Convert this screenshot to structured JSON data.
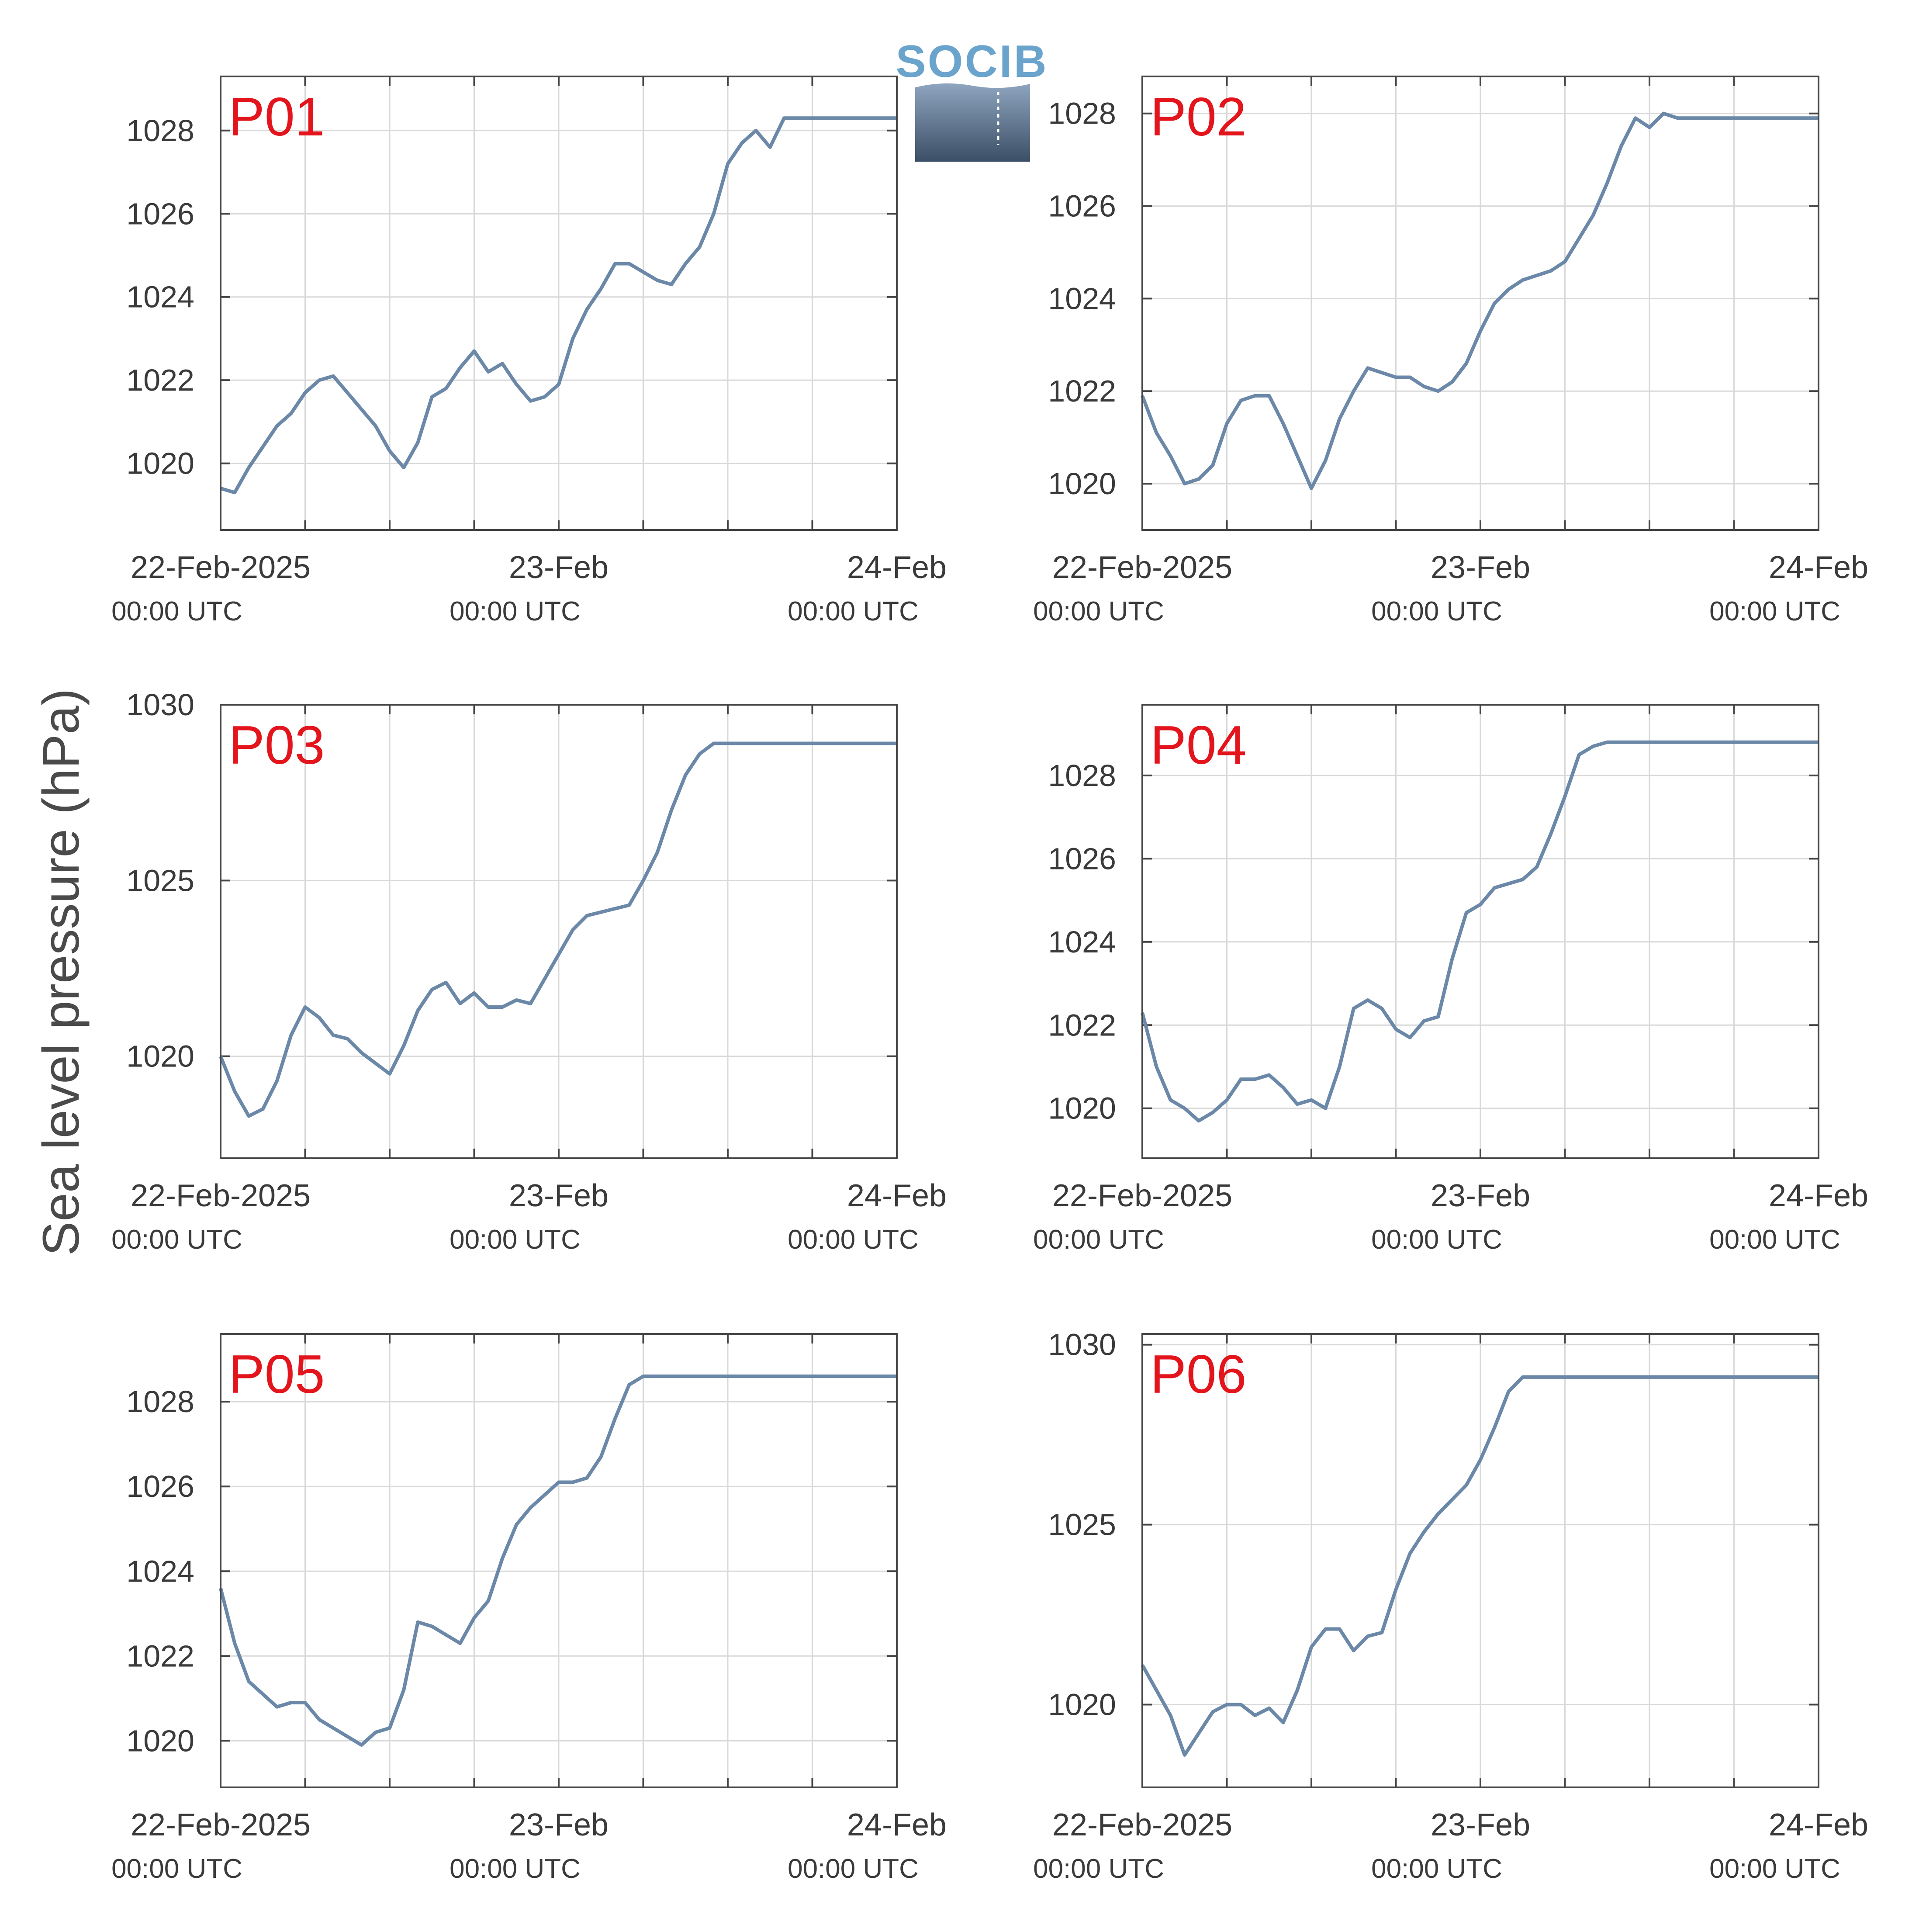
{
  "figure": {
    "ylabel": "Sea level pressure (hPa)",
    "logo_text": "SOCIB",
    "colors": {
      "line": "#6b88a8",
      "label": "#e3141c",
      "grid": "#d9d9d9",
      "axis": "#444444",
      "text": "#3a3a3a"
    }
  },
  "chart_data": [
    {
      "type": "line",
      "label": "P01",
      "grid": true,
      "xlim": [
        "2025-02-22T00:00Z",
        "2025-02-24T00:00Z"
      ],
      "xticks": [
        {
          "l1": "22-Feb-2025",
          "l2": "00:00 UTC"
        },
        {
          "l1": "23-Feb",
          "l2": "00:00 UTC"
        },
        {
          "l1": "24-Feb",
          "l2": "00:00 UTC"
        }
      ],
      "ylim": [
        1018.4,
        1029.3
      ],
      "yticks": [
        1020,
        1022,
        1024,
        1026,
        1028
      ],
      "x_hours": [
        0,
        1,
        2,
        3,
        4,
        5,
        6,
        7,
        8,
        9,
        10,
        11,
        12,
        13,
        14,
        15,
        16,
        17,
        18,
        19,
        20,
        21,
        22,
        23,
        24,
        25,
        26,
        27,
        28,
        29,
        30,
        31,
        32,
        33,
        34,
        35,
        36,
        37,
        38,
        39,
        40,
        41,
        42,
        43,
        44,
        45,
        46,
        47,
        48
      ],
      "values": [
        1019.4,
        1019.3,
        1019.9,
        1020.4,
        1020.9,
        1021.2,
        1021.7,
        1022.0,
        1022.1,
        1021.7,
        1021.3,
        1020.9,
        1020.3,
        1019.9,
        1020.5,
        1021.6,
        1021.8,
        1022.3,
        1022.7,
        1022.2,
        1022.4,
        1021.9,
        1021.5,
        1021.6,
        1021.9,
        1023.0,
        1023.7,
        1024.2,
        1024.8,
        1024.8,
        1024.6,
        1024.4,
        1024.3,
        1024.8,
        1025.2,
        1026.0,
        1027.2,
        1027.7,
        1028.0,
        1027.6,
        1028.3,
        1028.3,
        1028.3,
        1028.3,
        1028.3,
        1028.3,
        1028.3,
        1028.3,
        1028.3
      ]
    },
    {
      "type": "line",
      "label": "P02",
      "grid": true,
      "xlim": [
        "2025-02-22T00:00Z",
        "2025-02-24T00:00Z"
      ],
      "xticks": [
        {
          "l1": "22-Feb-2025",
          "l2": "00:00 UTC"
        },
        {
          "l1": "23-Feb",
          "l2": "00:00 UTC"
        },
        {
          "l1": "24-Feb",
          "l2": "00:00 UTC"
        }
      ],
      "ylim": [
        1019.0,
        1028.8
      ],
      "yticks": [
        1020,
        1022,
        1024,
        1026,
        1028
      ],
      "x_hours": [
        0,
        1,
        2,
        3,
        4,
        5,
        6,
        7,
        8,
        9,
        10,
        11,
        12,
        13,
        14,
        15,
        16,
        17,
        18,
        19,
        20,
        21,
        22,
        23,
        24,
        25,
        26,
        27,
        28,
        29,
        30,
        31,
        32,
        33,
        34,
        35,
        36,
        37,
        38,
        39,
        40,
        41,
        42,
        43,
        44,
        45,
        46,
        47,
        48
      ],
      "values": [
        1021.9,
        1021.1,
        1020.6,
        1020.0,
        1020.1,
        1020.4,
        1021.3,
        1021.8,
        1021.9,
        1021.9,
        1021.3,
        1020.6,
        1019.9,
        1020.5,
        1021.4,
        1022.0,
        1022.5,
        1022.4,
        1022.3,
        1022.3,
        1022.1,
        1022.0,
        1022.2,
        1022.6,
        1023.3,
        1023.9,
        1024.2,
        1024.4,
        1024.5,
        1024.6,
        1024.8,
        1025.3,
        1025.8,
        1026.5,
        1027.3,
        1027.9,
        1027.7,
        1028.0,
        1027.9,
        1027.9,
        1027.9,
        1027.9,
        1027.9,
        1027.9,
        1027.9,
        1027.9,
        1027.9,
        1027.9,
        1027.9
      ]
    },
    {
      "type": "line",
      "label": "P03",
      "grid": true,
      "xlim": [
        "2025-02-22T00:00Z",
        "2025-02-24T00:00Z"
      ],
      "xticks": [
        {
          "l1": "22-Feb-2025",
          "l2": "00:00 UTC"
        },
        {
          "l1": "23-Feb",
          "l2": "00:00 UTC"
        },
        {
          "l1": "24-Feb",
          "l2": "00:00 UTC"
        }
      ],
      "ylim": [
        1017.1,
        1030.0
      ],
      "yticks": [
        1020,
        1025,
        1030
      ],
      "x_hours": [
        0,
        1,
        2,
        3,
        4,
        5,
        6,
        7,
        8,
        9,
        10,
        11,
        12,
        13,
        14,
        15,
        16,
        17,
        18,
        19,
        20,
        21,
        22,
        23,
        24,
        25,
        26,
        27,
        28,
        29,
        30,
        31,
        32,
        33,
        34,
        35,
        36,
        37,
        38,
        39,
        40,
        41,
        42,
        43,
        44,
        45,
        46,
        47,
        48
      ],
      "values": [
        1020.0,
        1019.0,
        1018.3,
        1018.5,
        1019.3,
        1020.6,
        1021.4,
        1021.1,
        1020.6,
        1020.5,
        1020.1,
        1019.8,
        1019.5,
        1020.3,
        1021.3,
        1021.9,
        1022.1,
        1021.5,
        1021.8,
        1021.4,
        1021.4,
        1021.6,
        1021.5,
        1022.2,
        1022.9,
        1023.6,
        1024.0,
        1024.1,
        1024.2,
        1024.3,
        1025.0,
        1025.8,
        1027.0,
        1028.0,
        1028.6,
        1028.9,
        1028.9,
        1028.9,
        1028.9,
        1028.9,
        1028.9,
        1028.9,
        1028.9,
        1028.9,
        1028.9,
        1028.9,
        1028.9,
        1028.9,
        1028.9
      ]
    },
    {
      "type": "line",
      "label": "P04",
      "grid": true,
      "xlim": [
        "2025-02-22T00:00Z",
        "2025-02-24T00:00Z"
      ],
      "xticks": [
        {
          "l1": "22-Feb-2025",
          "l2": "00:00 UTC"
        },
        {
          "l1": "23-Feb",
          "l2": "00:00 UTC"
        },
        {
          "l1": "24-Feb",
          "l2": "00:00 UTC"
        }
      ],
      "ylim": [
        1018.8,
        1029.7
      ],
      "yticks": [
        1020,
        1022,
        1024,
        1026,
        1028
      ],
      "x_hours": [
        0,
        1,
        2,
        3,
        4,
        5,
        6,
        7,
        8,
        9,
        10,
        11,
        12,
        13,
        14,
        15,
        16,
        17,
        18,
        19,
        20,
        21,
        22,
        23,
        24,
        25,
        26,
        27,
        28,
        29,
        30,
        31,
        32,
        33,
        34,
        35,
        36,
        37,
        38,
        39,
        40,
        41,
        42,
        43,
        44,
        45,
        46,
        47,
        48
      ],
      "values": [
        1022.3,
        1021.0,
        1020.2,
        1020.0,
        1019.7,
        1019.9,
        1020.2,
        1020.7,
        1020.7,
        1020.8,
        1020.5,
        1020.1,
        1020.2,
        1020.0,
        1021.0,
        1022.4,
        1022.6,
        1022.4,
        1021.9,
        1021.7,
        1022.1,
        1022.2,
        1023.6,
        1024.7,
        1024.9,
        1025.3,
        1025.4,
        1025.5,
        1025.8,
        1026.6,
        1027.5,
        1028.5,
        1028.7,
        1028.8,
        1028.8,
        1028.8,
        1028.8,
        1028.8,
        1028.8,
        1028.8,
        1028.8,
        1028.8,
        1028.8,
        1028.8,
        1028.8,
        1028.8,
        1028.8,
        1028.8,
        1028.8
      ]
    },
    {
      "type": "line",
      "label": "P05",
      "grid": true,
      "xlim": [
        "2025-02-22T00:00Z",
        "2025-02-24T00:00Z"
      ],
      "xticks": [
        {
          "l1": "22-Feb-2025",
          "l2": "00:00 UTC"
        },
        {
          "l1": "23-Feb",
          "l2": "00:00 UTC"
        },
        {
          "l1": "24-Feb",
          "l2": "00:00 UTC"
        }
      ],
      "ylim": [
        1018.9,
        1029.6
      ],
      "yticks": [
        1020,
        1022,
        1024,
        1026,
        1028
      ],
      "x_hours": [
        0,
        1,
        2,
        3,
        4,
        5,
        6,
        7,
        8,
        9,
        10,
        11,
        12,
        13,
        14,
        15,
        16,
        17,
        18,
        19,
        20,
        21,
        22,
        23,
        24,
        25,
        26,
        27,
        28,
        29,
        30,
        31,
        32,
        33,
        34,
        35,
        36,
        37,
        38,
        39,
        40,
        41,
        42,
        43,
        44,
        45,
        46,
        47,
        48
      ],
      "values": [
        1023.6,
        1022.3,
        1021.4,
        1021.1,
        1020.8,
        1020.9,
        1020.9,
        1020.5,
        1020.3,
        1020.1,
        1019.9,
        1020.2,
        1020.3,
        1021.2,
        1022.8,
        1022.7,
        1022.5,
        1022.3,
        1022.9,
        1023.3,
        1024.3,
        1025.1,
        1025.5,
        1025.8,
        1026.1,
        1026.1,
        1026.2,
        1026.7,
        1027.6,
        1028.4,
        1028.6,
        1028.6,
        1028.6,
        1028.6,
        1028.6,
        1028.6,
        1028.6,
        1028.6,
        1028.6,
        1028.6,
        1028.6,
        1028.6,
        1028.6,
        1028.6,
        1028.6,
        1028.6,
        1028.6,
        1028.6,
        1028.6
      ]
    },
    {
      "type": "line",
      "label": "P06",
      "grid": true,
      "xlim": [
        "2025-02-22T00:00Z",
        "2025-02-24T00:00Z"
      ],
      "xticks": [
        {
          "l1": "22-Feb-2025",
          "l2": "00:00 UTC"
        },
        {
          "l1": "23-Feb",
          "l2": "00:00 UTC"
        },
        {
          "l1": "24-Feb",
          "l2": "00:00 UTC"
        }
      ],
      "ylim": [
        1017.7,
        1030.3
      ],
      "yticks": [
        1020,
        1025,
        1030
      ],
      "x_hours": [
        0,
        1,
        2,
        3,
        4,
        5,
        6,
        7,
        8,
        9,
        10,
        11,
        12,
        13,
        14,
        15,
        16,
        17,
        18,
        19,
        20,
        21,
        22,
        23,
        24,
        25,
        26,
        27,
        28,
        29,
        30,
        31,
        32,
        33,
        34,
        35,
        36,
        37,
        38,
        39,
        40,
        41,
        42,
        43,
        44,
        45,
        46,
        47,
        48
      ],
      "values": [
        1021.1,
        1020.4,
        1019.7,
        1018.6,
        1019.2,
        1019.8,
        1020.0,
        1020.0,
        1019.7,
        1019.9,
        1019.5,
        1020.4,
        1021.6,
        1022.1,
        1022.1,
        1021.5,
        1021.9,
        1022.0,
        1023.2,
        1024.2,
        1024.8,
        1025.3,
        1025.7,
        1026.1,
        1026.8,
        1027.7,
        1028.7,
        1029.1,
        1029.1,
        1029.1,
        1029.1,
        1029.1,
        1029.1,
        1029.1,
        1029.1,
        1029.1,
        1029.1,
        1029.1,
        1029.1,
        1029.1,
        1029.1,
        1029.1,
        1029.1,
        1029.1,
        1029.1,
        1029.1,
        1029.1,
        1029.1,
        1029.1
      ]
    }
  ]
}
